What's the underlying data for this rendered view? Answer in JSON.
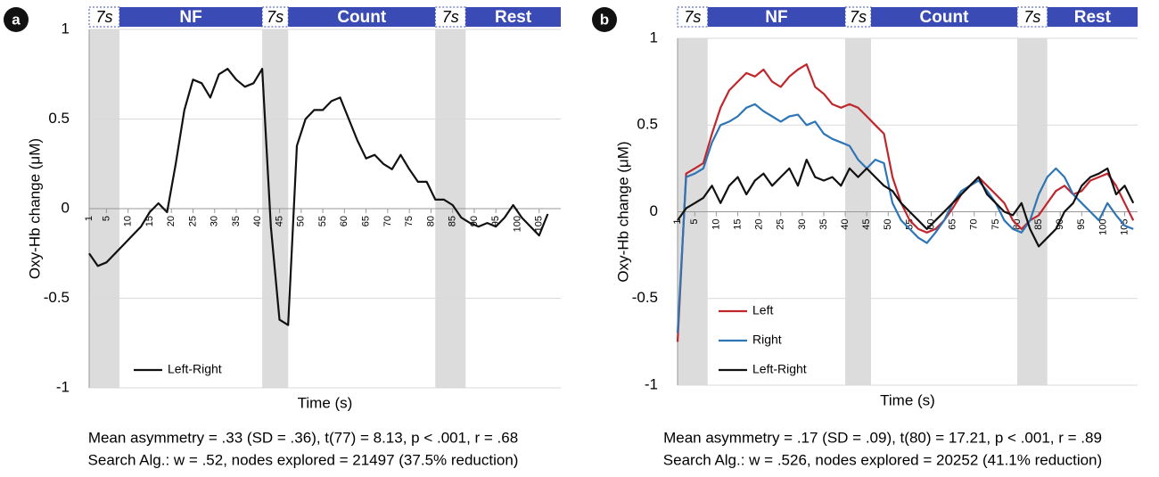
{
  "chart_data": [
    {
      "type": "line",
      "panel": "a",
      "xlabel": "Time (s)",
      "ylabel": "Oxy-Hb change (μM)",
      "xlim": [
        1,
        110
      ],
      "ylim": [
        -1,
        1
      ],
      "yticks": [
        -1,
        -0.5,
        0,
        0.5,
        1
      ],
      "xticks": [
        1,
        5,
        10,
        15,
        20,
        25,
        30,
        35,
        40,
        45,
        50,
        55,
        60,
        65,
        70,
        75,
        80,
        85,
        90,
        95,
        100,
        105
      ],
      "legend": "lower left",
      "phases": [
        {
          "label": "7s",
          "start": 1,
          "end": 8,
          "shaded": true
        },
        {
          "label": "NF",
          "start": 8,
          "end": 41,
          "shaded": false
        },
        {
          "label": "7s",
          "start": 41,
          "end": 47,
          "shaded": true
        },
        {
          "label": "Count",
          "start": 47,
          "end": 81,
          "shaded": false
        },
        {
          "label": "7s",
          "start": 81,
          "end": 88,
          "shaded": true
        },
        {
          "label": "Rest",
          "start": 88,
          "end": 110,
          "shaded": false
        }
      ],
      "x": [
        1,
        3,
        5,
        7,
        9,
        11,
        13,
        15,
        17,
        19,
        21,
        23,
        25,
        27,
        29,
        31,
        33,
        35,
        37,
        39,
        41,
        43,
        45,
        47,
        49,
        51,
        53,
        55,
        57,
        59,
        61,
        63,
        65,
        67,
        69,
        71,
        73,
        75,
        77,
        79,
        81,
        83,
        85,
        87,
        89,
        91,
        93,
        95,
        97,
        99,
        101,
        103,
        105,
        107
      ],
      "series": [
        {
          "name": "Left-Right",
          "color": "#111111",
          "values": [
            -0.25,
            -0.32,
            -0.3,
            -0.25,
            -0.2,
            -0.15,
            -0.1,
            -0.02,
            0.03,
            -0.02,
            0.25,
            0.55,
            0.72,
            0.7,
            0.62,
            0.75,
            0.78,
            0.72,
            0.68,
            0.7,
            0.78,
            -0.1,
            -0.62,
            -0.65,
            0.35,
            0.5,
            0.55,
            0.55,
            0.6,
            0.62,
            0.5,
            0.38,
            0.28,
            0.3,
            0.25,
            0.22,
            0.3,
            0.22,
            0.15,
            0.15,
            0.05,
            0.05,
            0.02,
            -0.05,
            -0.08,
            -0.1,
            -0.08,
            -0.1,
            -0.05,
            0.02,
            -0.05,
            -0.1,
            -0.15,
            -0.03
          ]
        }
      ],
      "caption": [
        "Mean asymmetry = .33 (SD = .36), t(77) = 8.13, p < .001, r = .68",
        "Search Alg.: w = .52, nodes explored = 21497 (37.5% reduction)"
      ]
    },
    {
      "type": "line",
      "panel": "b",
      "xlabel": "Time (s)",
      "ylabel": "Oxy-Hb change (μM)",
      "xlim": [
        1,
        108
      ],
      "ylim": [
        -1,
        1
      ],
      "yticks": [
        -1,
        -0.5,
        0,
        0.5,
        1
      ],
      "xticks": [
        1,
        5,
        10,
        15,
        20,
        25,
        30,
        35,
        40,
        45,
        50,
        55,
        60,
        65,
        70,
        75,
        80,
        85,
        90,
        95,
        100,
        105
      ],
      "legend": "lower left",
      "phases": [
        {
          "label": "7s",
          "start": 1,
          "end": 8,
          "shaded": true
        },
        {
          "label": "NF",
          "start": 8,
          "end": 40,
          "shaded": false
        },
        {
          "label": "7s",
          "start": 40,
          "end": 46,
          "shaded": true
        },
        {
          "label": "Count",
          "start": 46,
          "end": 80,
          "shaded": false
        },
        {
          "label": "7s",
          "start": 80,
          "end": 87,
          "shaded": true
        },
        {
          "label": "Rest",
          "start": 87,
          "end": 108,
          "shaded": false
        }
      ],
      "x": [
        1,
        3,
        5,
        7,
        9,
        11,
        13,
        15,
        17,
        19,
        21,
        23,
        25,
        27,
        29,
        31,
        33,
        35,
        37,
        39,
        41,
        43,
        45,
        47,
        49,
        51,
        53,
        55,
        57,
        59,
        61,
        63,
        65,
        67,
        69,
        71,
        73,
        75,
        77,
        79,
        81,
        83,
        85,
        87,
        89,
        91,
        93,
        95,
        97,
        99,
        101,
        103,
        105,
        107
      ],
      "series": [
        {
          "name": "Left",
          "color": "#c0272d",
          "values": [
            -0.75,
            0.22,
            0.25,
            0.28,
            0.45,
            0.6,
            0.7,
            0.75,
            0.8,
            0.78,
            0.82,
            0.75,
            0.72,
            0.78,
            0.82,
            0.85,
            0.72,
            0.68,
            0.62,
            0.6,
            0.62,
            0.6,
            0.55,
            0.5,
            0.45,
            0.2,
            0.05,
            -0.05,
            -0.1,
            -0.12,
            -0.1,
            -0.05,
            0.02,
            0.1,
            0.15,
            0.2,
            0.15,
            0.1,
            0.05,
            -0.05,
            -0.1,
            -0.05,
            -0.02,
            0.05,
            0.12,
            0.15,
            0.1,
            0.12,
            0.18,
            0.2,
            0.22,
            0.15,
            0.05,
            -0.05
          ]
        },
        {
          "name": "Right",
          "color": "#2e75b6",
          "values": [
            -0.7,
            0.2,
            0.22,
            0.25,
            0.4,
            0.5,
            0.52,
            0.55,
            0.6,
            0.62,
            0.58,
            0.55,
            0.52,
            0.55,
            0.56,
            0.5,
            0.52,
            0.45,
            0.42,
            0.4,
            0.38,
            0.3,
            0.25,
            0.3,
            0.28,
            0.05,
            -0.05,
            -0.1,
            -0.15,
            -0.18,
            -0.12,
            -0.05,
            0.05,
            0.12,
            0.15,
            0.18,
            0.12,
            0.05,
            -0.05,
            -0.1,
            -0.12,
            -0.05,
            0.1,
            0.2,
            0.25,
            0.2,
            0.1,
            0.05,
            0.0,
            -0.05,
            0.05,
            -0.02,
            -0.08,
            -0.1
          ]
        },
        {
          "name": "Left-Right",
          "color": "#111111",
          "values": [
            -0.05,
            0.02,
            0.05,
            0.08,
            0.15,
            0.05,
            0.15,
            0.2,
            0.1,
            0.18,
            0.22,
            0.15,
            0.2,
            0.25,
            0.15,
            0.3,
            0.2,
            0.18,
            0.2,
            0.15,
            0.25,
            0.2,
            0.25,
            0.2,
            0.15,
            0.12,
            0.05,
            0.0,
            -0.05,
            -0.1,
            -0.05,
            0.0,
            0.05,
            0.1,
            0.15,
            0.2,
            0.1,
            0.05,
            0.0,
            -0.02,
            0.05,
            -0.1,
            -0.2,
            -0.15,
            -0.1,
            0.0,
            0.05,
            0.15,
            0.2,
            0.22,
            0.25,
            0.1,
            0.15,
            0.05
          ]
        }
      ],
      "caption": [
        "Mean asymmetry = .17 (SD = .09), t(80) = 17.21, p < .001, r = .89",
        "Search Alg.: w = .526, nodes explored = 20252 (41.1% reduction)"
      ]
    }
  ]
}
